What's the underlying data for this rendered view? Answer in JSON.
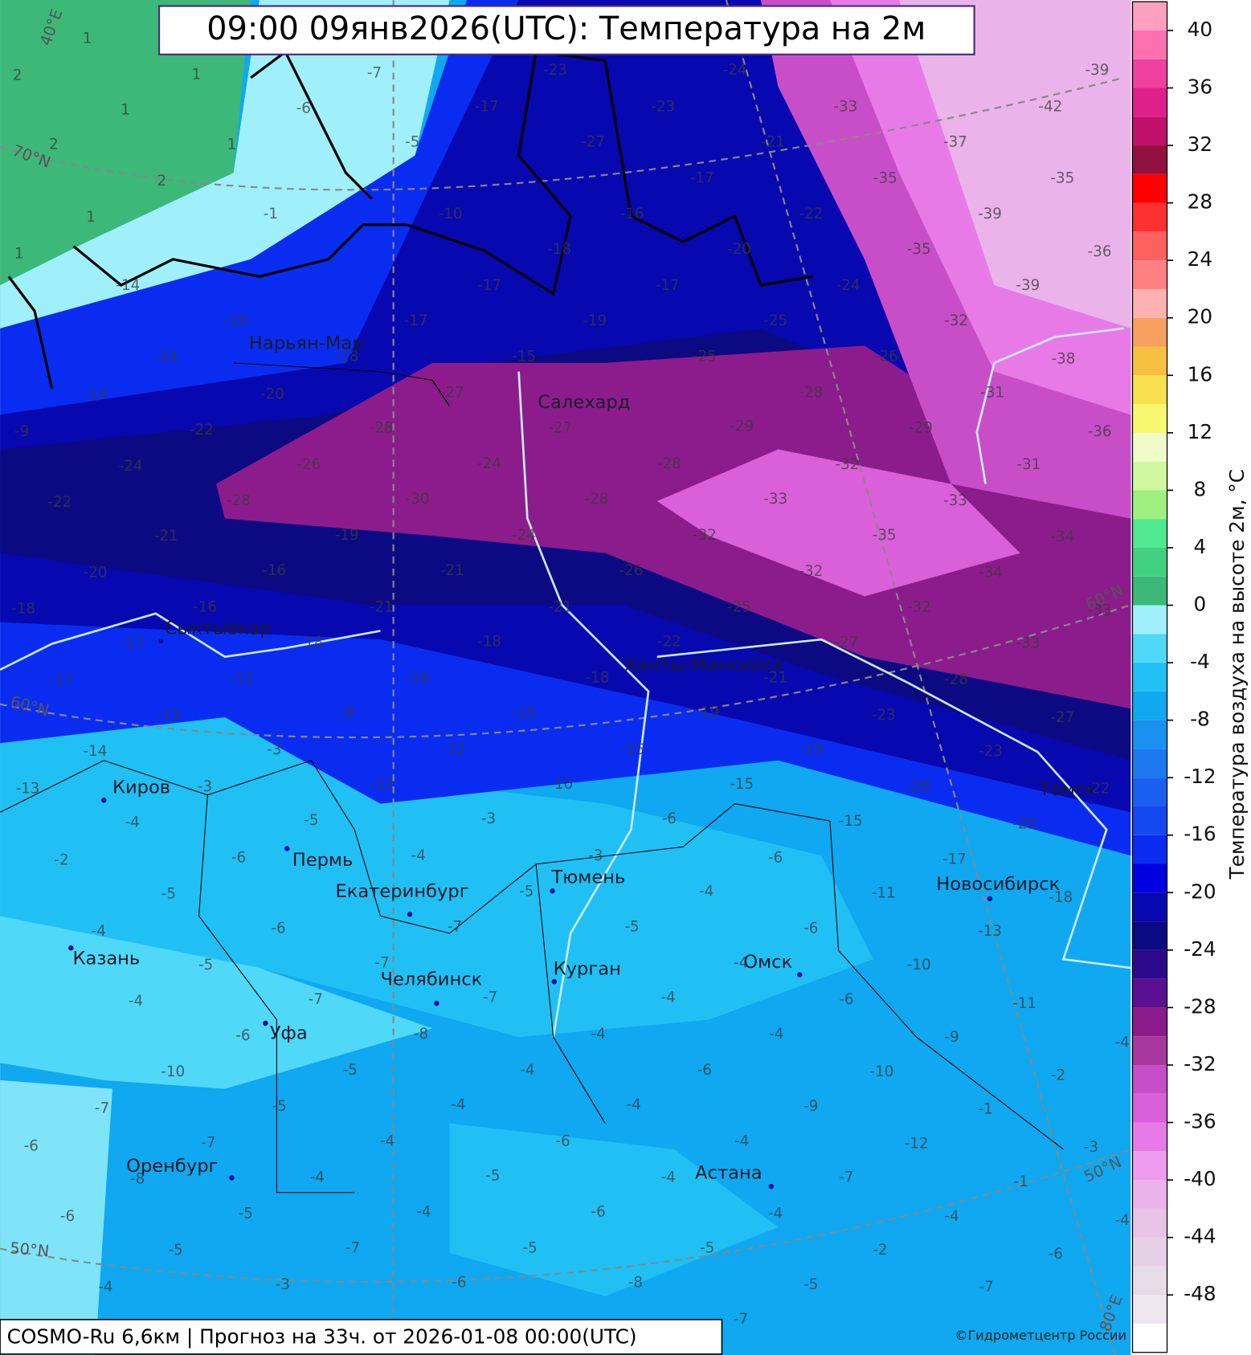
{
  "map": {
    "title": "09:00 09янв2026(UTC): Температура на 2м",
    "footer": "COSMO-Ru 6,6км | Прогноз на  33ч. от 2026-01-08 00:00(UTC)",
    "copyright": "©Гидрометцентр России",
    "graticule_labels": [
      "40°E",
      "70°N",
      "60°N",
      "50°N",
      "60°N",
      "50°N",
      "80°E"
    ],
    "cities": [
      "Нарьян-Мар",
      "Салехард",
      "Сыктывкар",
      "Ханты-Мансийск",
      "Киров",
      "Пермь",
      "Екатеринбург",
      "Тюмень",
      "Новосибирск",
      "Томск",
      "Казань",
      "Челябинск",
      "Курган",
      "Омск",
      "Уфа",
      "Оренбург",
      "Астана"
    ],
    "temperature_labels": [
      1,
      2,
      1,
      1,
      2,
      1,
      2,
      1,
      1,
      -7,
      -6,
      -5,
      -1,
      -10,
      -23,
      -17,
      -23,
      -27,
      -24,
      -21,
      -17,
      -16,
      -22,
      -33,
      -35,
      -35,
      -39,
      -42,
      -37,
      -35,
      -39,
      -36,
      -39,
      -38,
      -36,
      -32,
      -26,
      -24,
      -20,
      -17,
      -18,
      -17,
      -17,
      -19,
      -25,
      -25,
      -15,
      -18,
      -10,
      -14,
      -14,
      -14,
      -9,
      -20,
      -27,
      -22,
      -24,
      -22,
      -28,
      -26,
      -28,
      -27,
      -24,
      -30,
      -28,
      -28,
      -28,
      -29,
      -32,
      -29,
      -31,
      -31,
      -33,
      -32,
      -35,
      -33,
      -34,
      -34,
      -32,
      -32,
      -25,
      -22,
      -18,
      -21,
      -26,
      -21,
      -24,
      -19,
      -16,
      -21,
      -20,
      -18,
      -16,
      -21,
      -18,
      -16,
      -18,
      -17,
      -17,
      -12,
      -9,
      -15,
      -19,
      -21,
      -27,
      -28,
      -33,
      -33,
      -27,
      -23,
      -23,
      -19,
      -15,
      -15,
      -10,
      -12,
      -12,
      -3,
      -13,
      -14,
      -13,
      -3,
      -4,
      -5,
      -3,
      -6,
      -15,
      -20,
      -20,
      -22,
      -17,
      -6,
      -3,
      -4,
      -6,
      -2,
      -5,
      -5,
      -4,
      -11,
      -18,
      -13,
      -6,
      -5,
      -7,
      -6,
      -4,
      -5,
      -7,
      -4,
      -10,
      -11,
      -6,
      -4,
      -7,
      -7,
      -4,
      -6,
      -8,
      -4,
      -4,
      -9,
      -4,
      -10,
      -5,
      -4,
      -6,
      -10,
      -2,
      -7,
      -5,
      -4,
      -4,
      -9,
      -1,
      -6,
      -7,
      -4,
      -6,
      -4,
      -12,
      -3,
      -8,
      -4,
      -5,
      -4,
      -7,
      -1,
      -6,
      -5,
      -4,
      -6,
      -4,
      -4,
      -4,
      -5,
      -7,
      -5,
      -5,
      -2,
      -6,
      -4,
      -3,
      -6,
      -8,
      -5,
      -7,
      -7
    ]
  },
  "colorbar": {
    "label": "Температура воздуха на высоте 2м, °C",
    "ylim": [
      -52,
      42
    ],
    "yticks": [
      -48,
      -44,
      -40,
      -36,
      -32,
      -28,
      -24,
      -20,
      -16,
      -12,
      -8,
      -4,
      0,
      4,
      8,
      12,
      16,
      20,
      24,
      28,
      32,
      36,
      40
    ],
    "colors": [
      "#ffffff",
      "#f0e6f0",
      "#e8dce8",
      "#e6d0e6",
      "#e8c4e8",
      "#eab4ea",
      "#ee9cee",
      "#e87ae8",
      "#d960d9",
      "#c84ec8",
      "#a8389f",
      "#8c1c8c",
      "#5a1090",
      "#2d0a8c",
      "#0c0a82",
      "#0808b0",
      "#0000e0",
      "#0a2cf0",
      "#1448f0",
      "#1a60f0",
      "#1e78f0",
      "#1a90f0",
      "#10a8f0",
      "#20c0f4",
      "#50d8f8",
      "#a0f0fc",
      "#3cb878",
      "#40d080",
      "#50e890",
      "#a0f080",
      "#d0f8a0",
      "#f0fcc8",
      "#f8f870",
      "#f8e050",
      "#f8c040",
      "#f8a060",
      "#ffb0b0",
      "#ff8080",
      "#ff6060",
      "#ff3030",
      "#ff0000",
      "#901040",
      "#c0106a",
      "#e0208a",
      "#f040a0",
      "#ff70b0",
      "#ffa0c0"
    ]
  }
}
